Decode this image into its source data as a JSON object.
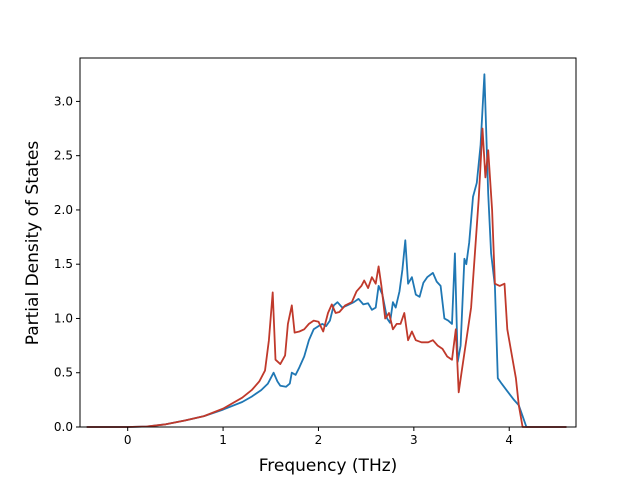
{
  "chart_data": {
    "type": "line",
    "title": "",
    "xlabel": "Frequency (THz)",
    "ylabel": "Partial Density of States",
    "xlim": [
      -0.5,
      4.7
    ],
    "ylim": [
      0,
      3.4
    ],
    "xticks": [
      0,
      1,
      2,
      3,
      4
    ],
    "xtick_labels": [
      "0",
      "1",
      "2",
      "3",
      "4"
    ],
    "yticks": [
      0.0,
      0.5,
      1.0,
      1.5,
      2.0,
      2.5,
      3.0
    ],
    "ytick_labels": [
      "0.0",
      "0.5",
      "1.0",
      "1.5",
      "2.0",
      "2.5",
      "3.0"
    ],
    "grid": false,
    "legend": false,
    "series": [
      {
        "color": "#1f77b4",
        "points": [
          [
            -0.43,
            0.0
          ],
          [
            0.0,
            0.0
          ],
          [
            0.2,
            0.005
          ],
          [
            0.4,
            0.025
          ],
          [
            0.6,
            0.06
          ],
          [
            0.8,
            0.1
          ],
          [
            1.0,
            0.16
          ],
          [
            1.2,
            0.23
          ],
          [
            1.3,
            0.28
          ],
          [
            1.4,
            0.34
          ],
          [
            1.47,
            0.4
          ],
          [
            1.53,
            0.5
          ],
          [
            1.57,
            0.42
          ],
          [
            1.6,
            0.38
          ],
          [
            1.66,
            0.37
          ],
          [
            1.7,
            0.4
          ],
          [
            1.72,
            0.5
          ],
          [
            1.76,
            0.48
          ],
          [
            1.8,
            0.55
          ],
          [
            1.85,
            0.65
          ],
          [
            1.9,
            0.8
          ],
          [
            1.95,
            0.9
          ],
          [
            2.0,
            0.93
          ],
          [
            2.04,
            0.95
          ],
          [
            2.08,
            0.93
          ],
          [
            2.12,
            0.98
          ],
          [
            2.16,
            1.12
          ],
          [
            2.2,
            1.15
          ],
          [
            2.25,
            1.1
          ],
          [
            2.3,
            1.12
          ],
          [
            2.37,
            1.15
          ],
          [
            2.42,
            1.18
          ],
          [
            2.47,
            1.13
          ],
          [
            2.52,
            1.14
          ],
          [
            2.56,
            1.08
          ],
          [
            2.6,
            1.1
          ],
          [
            2.63,
            1.3
          ],
          [
            2.67,
            1.22
          ],
          [
            2.72,
            1.0
          ],
          [
            2.75,
            0.96
          ],
          [
            2.78,
            1.15
          ],
          [
            2.81,
            1.1
          ],
          [
            2.85,
            1.25
          ],
          [
            2.88,
            1.45
          ],
          [
            2.91,
            1.72
          ],
          [
            2.94,
            1.32
          ],
          [
            2.98,
            1.38
          ],
          [
            3.02,
            1.22
          ],
          [
            3.06,
            1.2
          ],
          [
            3.1,
            1.33
          ],
          [
            3.14,
            1.38
          ],
          [
            3.2,
            1.42
          ],
          [
            3.24,
            1.34
          ],
          [
            3.28,
            1.3
          ],
          [
            3.32,
            1.0
          ],
          [
            3.36,
            0.98
          ],
          [
            3.4,
            0.95
          ],
          [
            3.43,
            1.6
          ],
          [
            3.46,
            0.6
          ],
          [
            3.49,
            0.75
          ],
          [
            3.53,
            1.55
          ],
          [
            3.55,
            1.5
          ],
          [
            3.58,
            1.7
          ],
          [
            3.62,
            2.12
          ],
          [
            3.66,
            2.25
          ],
          [
            3.7,
            2.6
          ],
          [
            3.74,
            3.25
          ],
          [
            3.78,
            2.15
          ],
          [
            3.81,
            1.6
          ],
          [
            3.85,
            1.3
          ],
          [
            3.88,
            0.45
          ],
          [
            3.92,
            0.4
          ],
          [
            3.98,
            0.33
          ],
          [
            4.05,
            0.25
          ],
          [
            4.1,
            0.2
          ],
          [
            4.14,
            0.1
          ],
          [
            4.18,
            0.0
          ],
          [
            4.6,
            0.0
          ]
        ]
      },
      {
        "color": "#c0392b",
        "points": [
          [
            -0.43,
            0.0
          ],
          [
            0.0,
            0.0
          ],
          [
            0.2,
            0.005
          ],
          [
            0.4,
            0.025
          ],
          [
            0.6,
            0.06
          ],
          [
            0.8,
            0.1
          ],
          [
            1.0,
            0.17
          ],
          [
            1.2,
            0.27
          ],
          [
            1.3,
            0.34
          ],
          [
            1.38,
            0.42
          ],
          [
            1.44,
            0.52
          ],
          [
            1.48,
            0.8
          ],
          [
            1.52,
            1.24
          ],
          [
            1.55,
            0.62
          ],
          [
            1.6,
            0.58
          ],
          [
            1.65,
            0.66
          ],
          [
            1.68,
            0.95
          ],
          [
            1.72,
            1.12
          ],
          [
            1.75,
            0.87
          ],
          [
            1.8,
            0.88
          ],
          [
            1.85,
            0.9
          ],
          [
            1.9,
            0.95
          ],
          [
            1.95,
            0.98
          ],
          [
            2.0,
            0.97
          ],
          [
            2.05,
            0.88
          ],
          [
            2.1,
            1.05
          ],
          [
            2.14,
            1.13
          ],
          [
            2.18,
            1.05
          ],
          [
            2.22,
            1.06
          ],
          [
            2.28,
            1.12
          ],
          [
            2.35,
            1.15
          ],
          [
            2.4,
            1.25
          ],
          [
            2.45,
            1.3
          ],
          [
            2.48,
            1.35
          ],
          [
            2.52,
            1.28
          ],
          [
            2.56,
            1.38
          ],
          [
            2.6,
            1.32
          ],
          [
            2.63,
            1.48
          ],
          [
            2.66,
            1.3
          ],
          [
            2.7,
            1.0
          ],
          [
            2.74,
            1.05
          ],
          [
            2.78,
            0.9
          ],
          [
            2.82,
            0.95
          ],
          [
            2.86,
            0.95
          ],
          [
            2.9,
            1.05
          ],
          [
            2.94,
            0.8
          ],
          [
            2.98,
            0.88
          ],
          [
            3.02,
            0.8
          ],
          [
            3.08,
            0.78
          ],
          [
            3.15,
            0.78
          ],
          [
            3.2,
            0.8
          ],
          [
            3.25,
            0.75
          ],
          [
            3.3,
            0.72
          ],
          [
            3.35,
            0.65
          ],
          [
            3.4,
            0.62
          ],
          [
            3.44,
            0.9
          ],
          [
            3.47,
            0.32
          ],
          [
            3.5,
            0.5
          ],
          [
            3.55,
            0.8
          ],
          [
            3.6,
            1.1
          ],
          [
            3.64,
            1.6
          ],
          [
            3.68,
            2.1
          ],
          [
            3.72,
            2.75
          ],
          [
            3.75,
            2.3
          ],
          [
            3.78,
            2.55
          ],
          [
            3.82,
            2.0
          ],
          [
            3.85,
            1.32
          ],
          [
            3.9,
            1.3
          ],
          [
            3.95,
            1.32
          ],
          [
            3.98,
            0.9
          ],
          [
            4.02,
            0.7
          ],
          [
            4.07,
            0.45
          ],
          [
            4.1,
            0.2
          ],
          [
            4.14,
            0.0
          ],
          [
            4.6,
            0.0
          ]
        ]
      }
    ]
  }
}
